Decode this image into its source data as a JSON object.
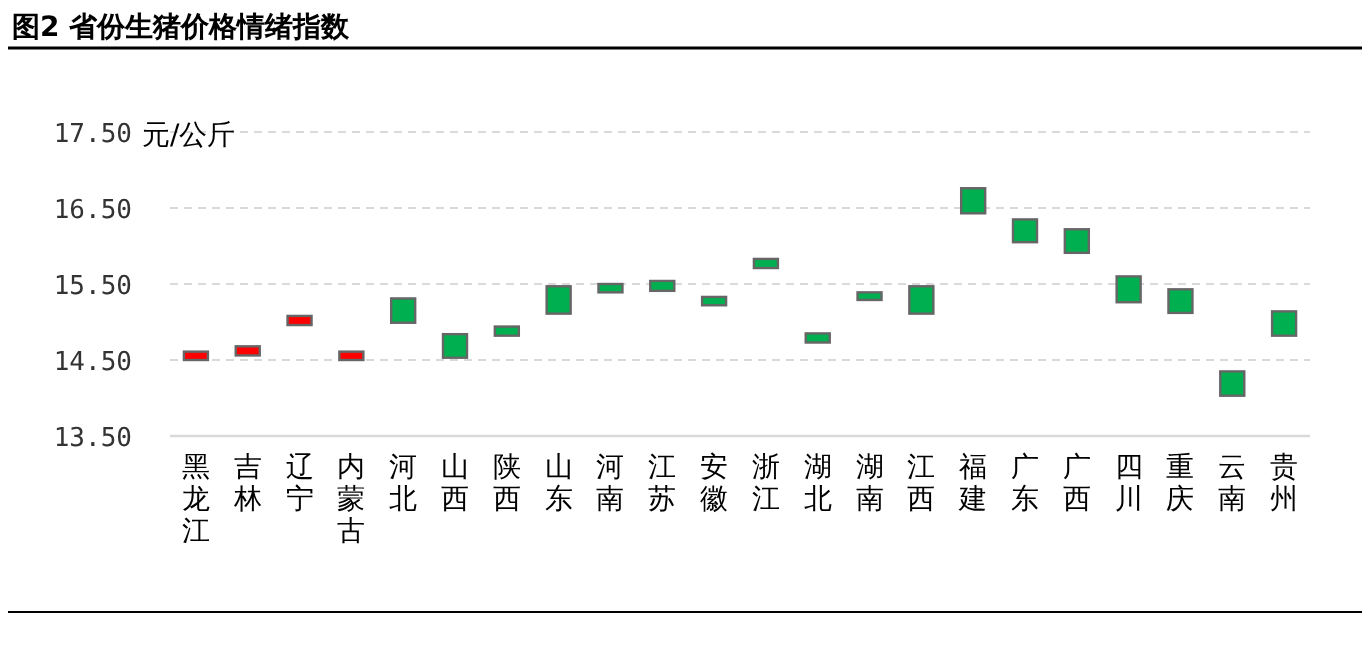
{
  "chart_data": {
    "type": "bar",
    "title": "图2 省份生猪价格情绪指数",
    "ylabel": "元/公斤",
    "categories": [
      "黑龙江",
      "吉林",
      "辽宁",
      "内蒙古",
      "河北",
      "山西",
      "陕西",
      "山东",
      "河南",
      "江苏",
      "安徽",
      "浙江",
      "湖北",
      "湖南",
      "江西",
      "福建",
      "广东",
      "广西",
      "四川",
      "重庆",
      "云南",
      "贵州"
    ],
    "base": [
      14.5,
      14.56,
      14.96,
      14.5,
      14.99,
      14.53,
      14.82,
      15.11,
      15.39,
      15.41,
      15.22,
      15.71,
      14.73,
      15.29,
      15.11,
      16.43,
      16.05,
      15.91,
      15.26,
      15.12,
      14.03,
      14.82
    ],
    "values": [
      0.11,
      0.12,
      0.12,
      0.11,
      0.32,
      0.31,
      0.12,
      0.36,
      0.11,
      0.13,
      0.11,
      0.12,
      0.12,
      0.1,
      0.36,
      0.33,
      0.3,
      0.31,
      0.34,
      0.31,
      0.32,
      0.32
    ],
    "colors": [
      "#ff0000",
      "#ff0000",
      "#ff0000",
      "#ff0000",
      "#00b050",
      "#00b050",
      "#00b050",
      "#00b050",
      "#00b050",
      "#00b050",
      "#00b050",
      "#00b050",
      "#00b050",
      "#00b050",
      "#00b050",
      "#00b050",
      "#00b050",
      "#00b050",
      "#00b050",
      "#00b050",
      "#00b050",
      "#00b050"
    ],
    "ylim": [
      13.5,
      17.5
    ],
    "yticks": [
      {
        "value": 13.5,
        "label": "13.50"
      },
      {
        "value": 14.5,
        "label": "14.50"
      },
      {
        "value": 15.5,
        "label": "15.50"
      },
      {
        "value": 16.5,
        "label": "16.50"
      },
      {
        "value": 17.5,
        "label": "17.50"
      }
    ],
    "grid": "y"
  }
}
